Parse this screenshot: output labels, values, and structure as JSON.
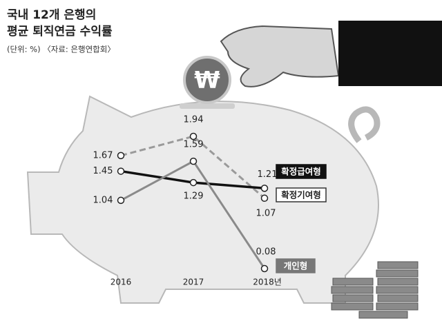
{
  "chart_data": {
    "type": "line",
    "title": [
      "국내 12개 은행의",
      "평균 퇴직연금 수익률"
    ],
    "subtitle": "(단위: %) 〈자료: 은행연합회〉",
    "coin_label": "₩",
    "categories": [
      "2016",
      "2017",
      "2018년"
    ],
    "series": [
      {
        "name": "확정기여형",
        "color": "#9a9a9a",
        "dashed": true,
        "values": [
          1.67,
          1.94,
          1.07
        ]
      },
      {
        "name": "확정급여형",
        "color": "#111111",
        "dashed": false,
        "values": [
          1.45,
          1.29,
          1.21
        ]
      },
      {
        "name": "개인형",
        "color": "#8a8a8a",
        "dashed": false,
        "values": [
          1.04,
          1.59,
          0.08
        ]
      }
    ]
  }
}
